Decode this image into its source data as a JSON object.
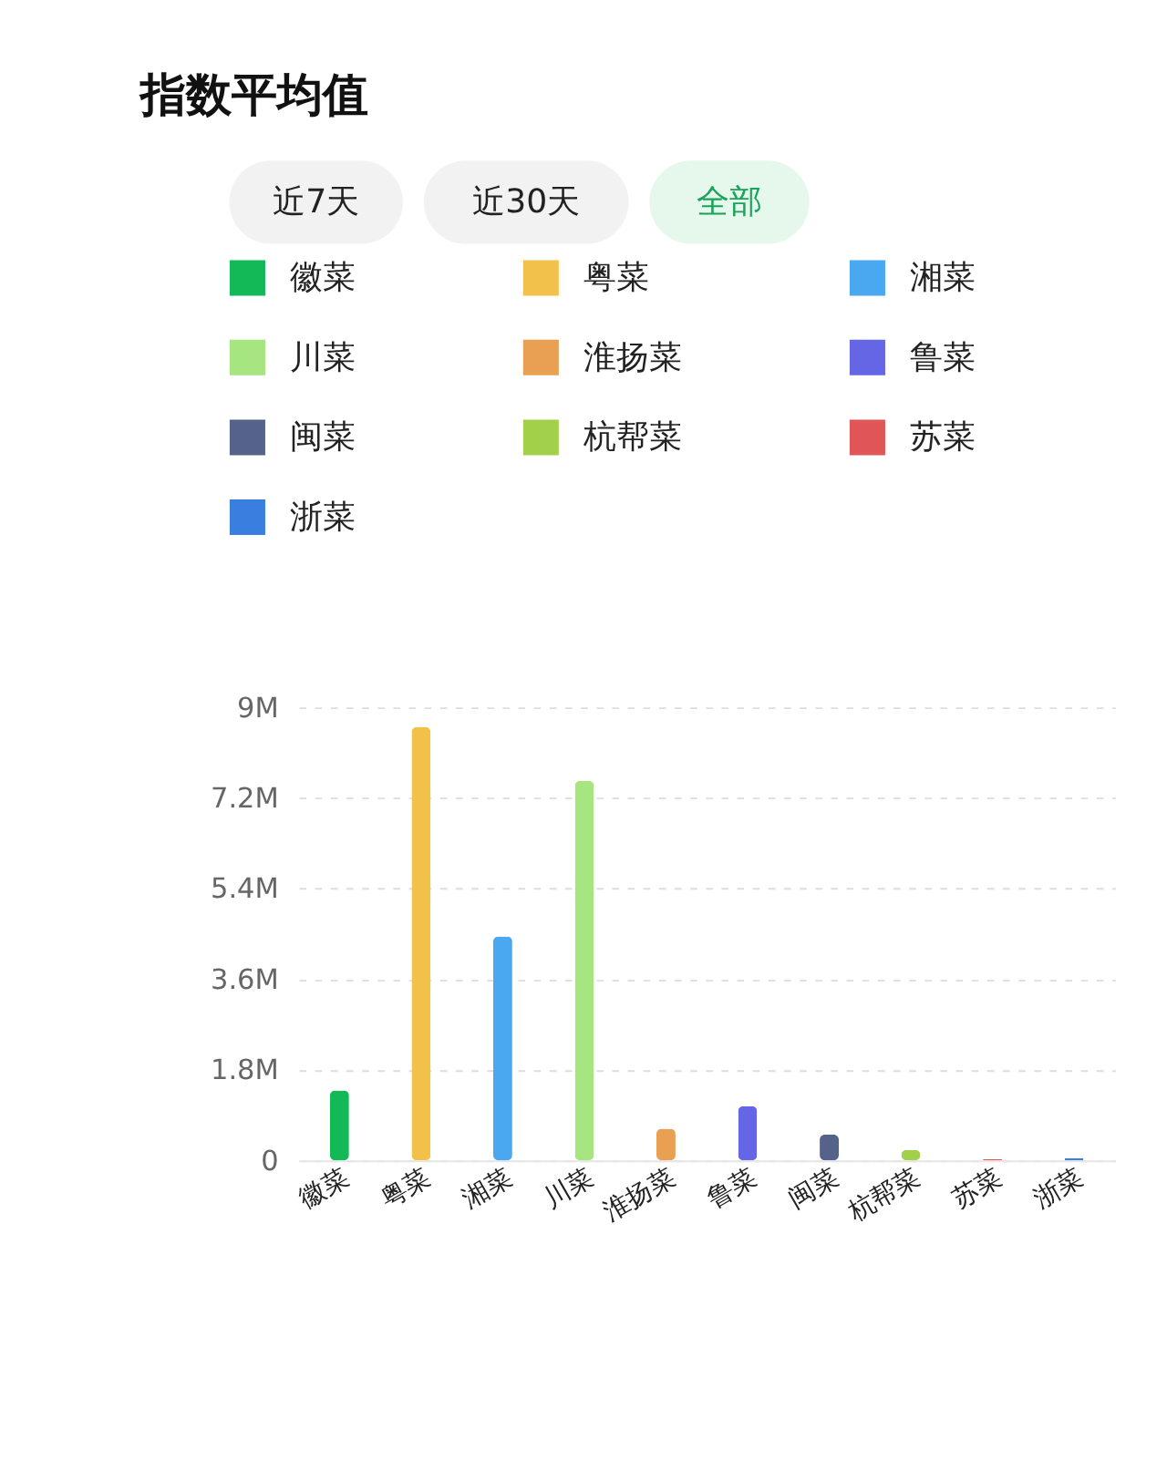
{
  "chart_data": {
    "type": "bar",
    "title": "指数平均值",
    "annotations": [
      "近7天",
      "近30天",
      "全部"
    ],
    "categories": [
      "徽菜",
      "粤菜",
      "湘菜",
      "川菜",
      "淮扬菜",
      "鲁菜",
      "闽菜",
      "杭帮菜",
      "苏菜",
      "浙菜"
    ],
    "series": [
      {
        "name": "徽菜",
        "color": "#13b857",
        "values": [
          1390000,
          null,
          null,
          null,
          null,
          null,
          null,
          null,
          null,
          null
        ]
      },
      {
        "name": "粤菜",
        "color": "#f2c14a",
        "values": [
          null,
          8610000,
          null,
          null,
          null,
          null,
          null,
          null,
          null,
          null
        ]
      },
      {
        "name": "湘菜",
        "color": "#4aa8f0",
        "values": [
          null,
          null,
          4450000,
          null,
          null,
          null,
          null,
          null,
          null,
          null
        ]
      },
      {
        "name": "川菜",
        "color": "#a6e57f",
        "values": [
          null,
          null,
          null,
          7540000,
          null,
          null,
          null,
          null,
          null,
          null
        ]
      },
      {
        "name": "淮扬菜",
        "color": "#e9a052",
        "values": [
          null,
          null,
          null,
          null,
          630000,
          null,
          null,
          null,
          null,
          null
        ]
      },
      {
        "name": "鲁菜",
        "color": "#6466e6",
        "values": [
          null,
          null,
          null,
          null,
          null,
          1080000,
          null,
          null,
          null,
          null
        ]
      },
      {
        "name": "闽菜",
        "color": "#55628a",
        "values": [
          null,
          null,
          null,
          null,
          null,
          null,
          510000,
          null,
          null,
          null
        ]
      },
      {
        "name": "杭帮菜",
        "color": "#a3d04a",
        "values": [
          null,
          null,
          null,
          null,
          null,
          null,
          null,
          210000,
          null,
          null
        ]
      },
      {
        "name": "苏菜",
        "color": "#e05555",
        "values": [
          null,
          null,
          null,
          null,
          null,
          null,
          null,
          null,
          30000,
          null
        ]
      },
      {
        "name": "浙菜",
        "color": "#3a7ee0",
        "values": [
          null,
          null,
          null,
          null,
          null,
          null,
          null,
          null,
          null,
          40000
        ]
      }
    ],
    "ylim": [
      0,
      9000000
    ],
    "yticks": [
      {
        "value": 0,
        "label": "0"
      },
      {
        "value": 1800000,
        "label": "1.8M"
      },
      {
        "value": 3600000,
        "label": "3.6M"
      },
      {
        "value": 5400000,
        "label": "5.4M"
      },
      {
        "value": 7200000,
        "label": "7.2M"
      },
      {
        "value": 9000000,
        "label": "9M"
      }
    ],
    "grid": "y",
    "legend": "top"
  }
}
